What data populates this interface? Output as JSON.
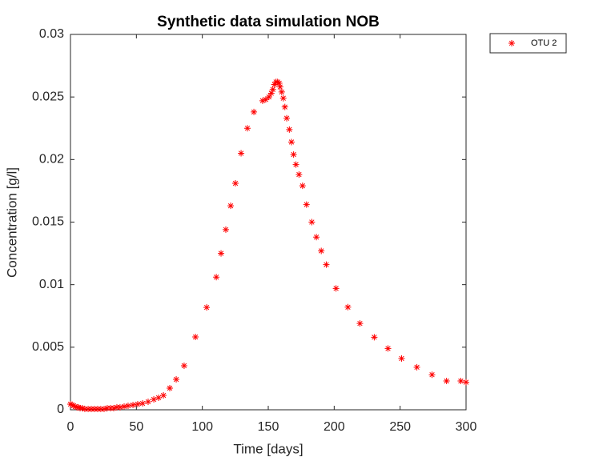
{
  "chart_data": {
    "type": "scatter",
    "title": "Synthetic data simulation NOB",
    "x_label": "Time [days]",
    "y_label": "Concentration [g/l]",
    "xlim": [
      0,
      300
    ],
    "xticks": [
      0,
      50,
      100,
      150,
      200,
      250,
      300
    ],
    "ylim": [
      0,
      0.03
    ],
    "yticks": [
      0,
      0.005,
      0.01,
      0.015,
      0.02,
      0.025,
      0.03
    ],
    "legend_position": "northeastoutside",
    "series": [
      {
        "name": "OTU 2",
        "color": "#ff0000",
        "marker": "asterisk",
        "x": [
          0,
          1.2,
          2.4,
          3.6,
          4.9,
          6.1,
          7.3,
          9,
          10.9,
          13.4,
          15.8,
          18.2,
          20.6,
          23,
          25.5,
          27.9,
          30.4,
          32.8,
          35.2,
          37.6,
          40.7,
          43.7,
          47.4,
          51,
          54.7,
          58.9,
          63.2,
          66.8,
          70.5,
          75.3,
          80.2,
          86.2,
          94.8,
          103.3,
          110.6,
          114.2,
          117.8,
          121.5,
          125.1,
          129.4,
          134.2,
          139.1,
          145.7,
          148.1,
          150.5,
          152.3,
          153.5,
          154.7,
          155.9,
          157.1,
          158.3,
          159,
          160.2,
          161.4,
          162.6,
          164,
          166,
          167.6,
          169.2,
          171,
          173.3,
          176,
          179,
          183,
          186.5,
          190.2,
          194,
          201.4,
          210.4,
          219.5,
          230.4,
          240.8,
          251.1,
          262.7,
          274.2,
          285.2,
          296,
          300
        ],
        "values": [
          0.00045,
          0.0004,
          0.00032,
          0.00026,
          0.0002,
          0.0002,
          0.00013,
          0.00013,
          6e-05,
          6e-05,
          6e-05,
          6e-05,
          6e-05,
          6e-05,
          6e-05,
          0.00013,
          0.00013,
          0.00013,
          0.0002,
          0.0002,
          0.00026,
          0.00032,
          0.00038,
          0.00045,
          0.00051,
          0.00064,
          0.00083,
          0.00096,
          0.00115,
          0.00173,
          0.00243,
          0.00352,
          0.00582,
          0.00818,
          0.0106,
          0.0125,
          0.0144,
          0.0163,
          0.0181,
          0.0205,
          0.0225,
          0.0238,
          0.0247,
          0.0248,
          0.025,
          0.0253,
          0.0256,
          0.026,
          0.0262,
          0.0262,
          0.0261,
          0.0258,
          0.0254,
          0.0249,
          0.0242,
          0.0233,
          0.0224,
          0.0214,
          0.0204,
          0.0196,
          0.0188,
          0.0179,
          0.0164,
          0.015,
          0.0138,
          0.0127,
          0.0116,
          0.0097,
          0.0082,
          0.0069,
          0.0058,
          0.0049,
          0.0041,
          0.0034,
          0.0028,
          0.0023,
          0.0023,
          0.0022
        ]
      }
    ]
  }
}
